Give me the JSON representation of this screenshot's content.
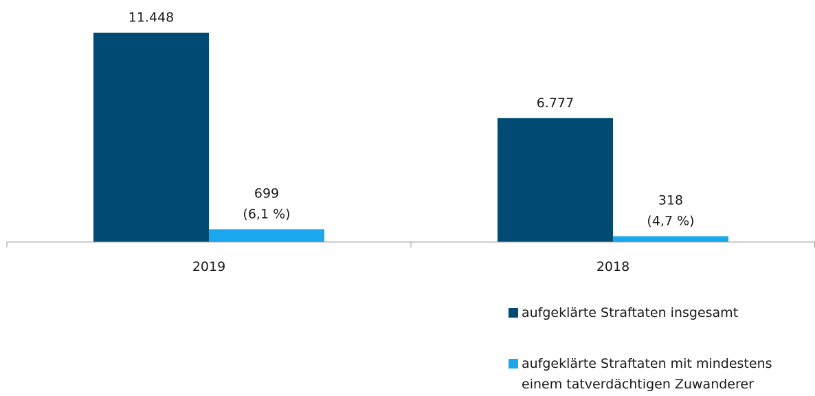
{
  "chart_data": {
    "type": "bar",
    "categories": [
      "2019",
      "2018"
    ],
    "series": [
      {
        "name": "aufgeklärte Straftaten insgesamt",
        "color": "#004a74",
        "values": [
          11448,
          6777
        ],
        "value_labels": [
          "11.448",
          "6.777"
        ]
      },
      {
        "name": "aufgeklärte Straftaten mit mindestens einem tatverdächtigen Zuwanderer",
        "color": "#1aa7ee",
        "values": [
          699,
          318
        ],
        "value_labels": [
          "699",
          "318"
        ],
        "shares": [
          6.1,
          4.7
        ],
        "share_labels": [
          "(6,1 %)",
          "(4,7 %)"
        ]
      }
    ],
    "ylim": [
      0,
      12000
    ]
  }
}
